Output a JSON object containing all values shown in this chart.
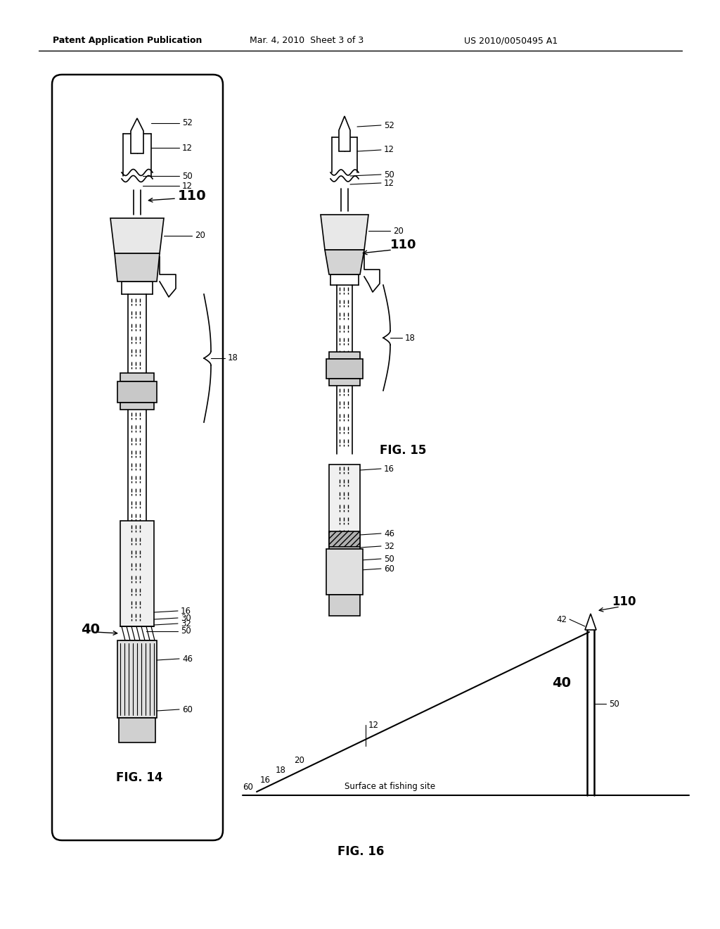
{
  "header_left": "Patent Application Publication",
  "header_center": "Mar. 4, 2010  Sheet 3 of 3",
  "header_right": "US 2010/0050495 A1",
  "background_color": "#ffffff",
  "fig14_label": "FIG. 14",
  "fig15_label": "FIG. 15",
  "fig16_label": "FIG. 16"
}
